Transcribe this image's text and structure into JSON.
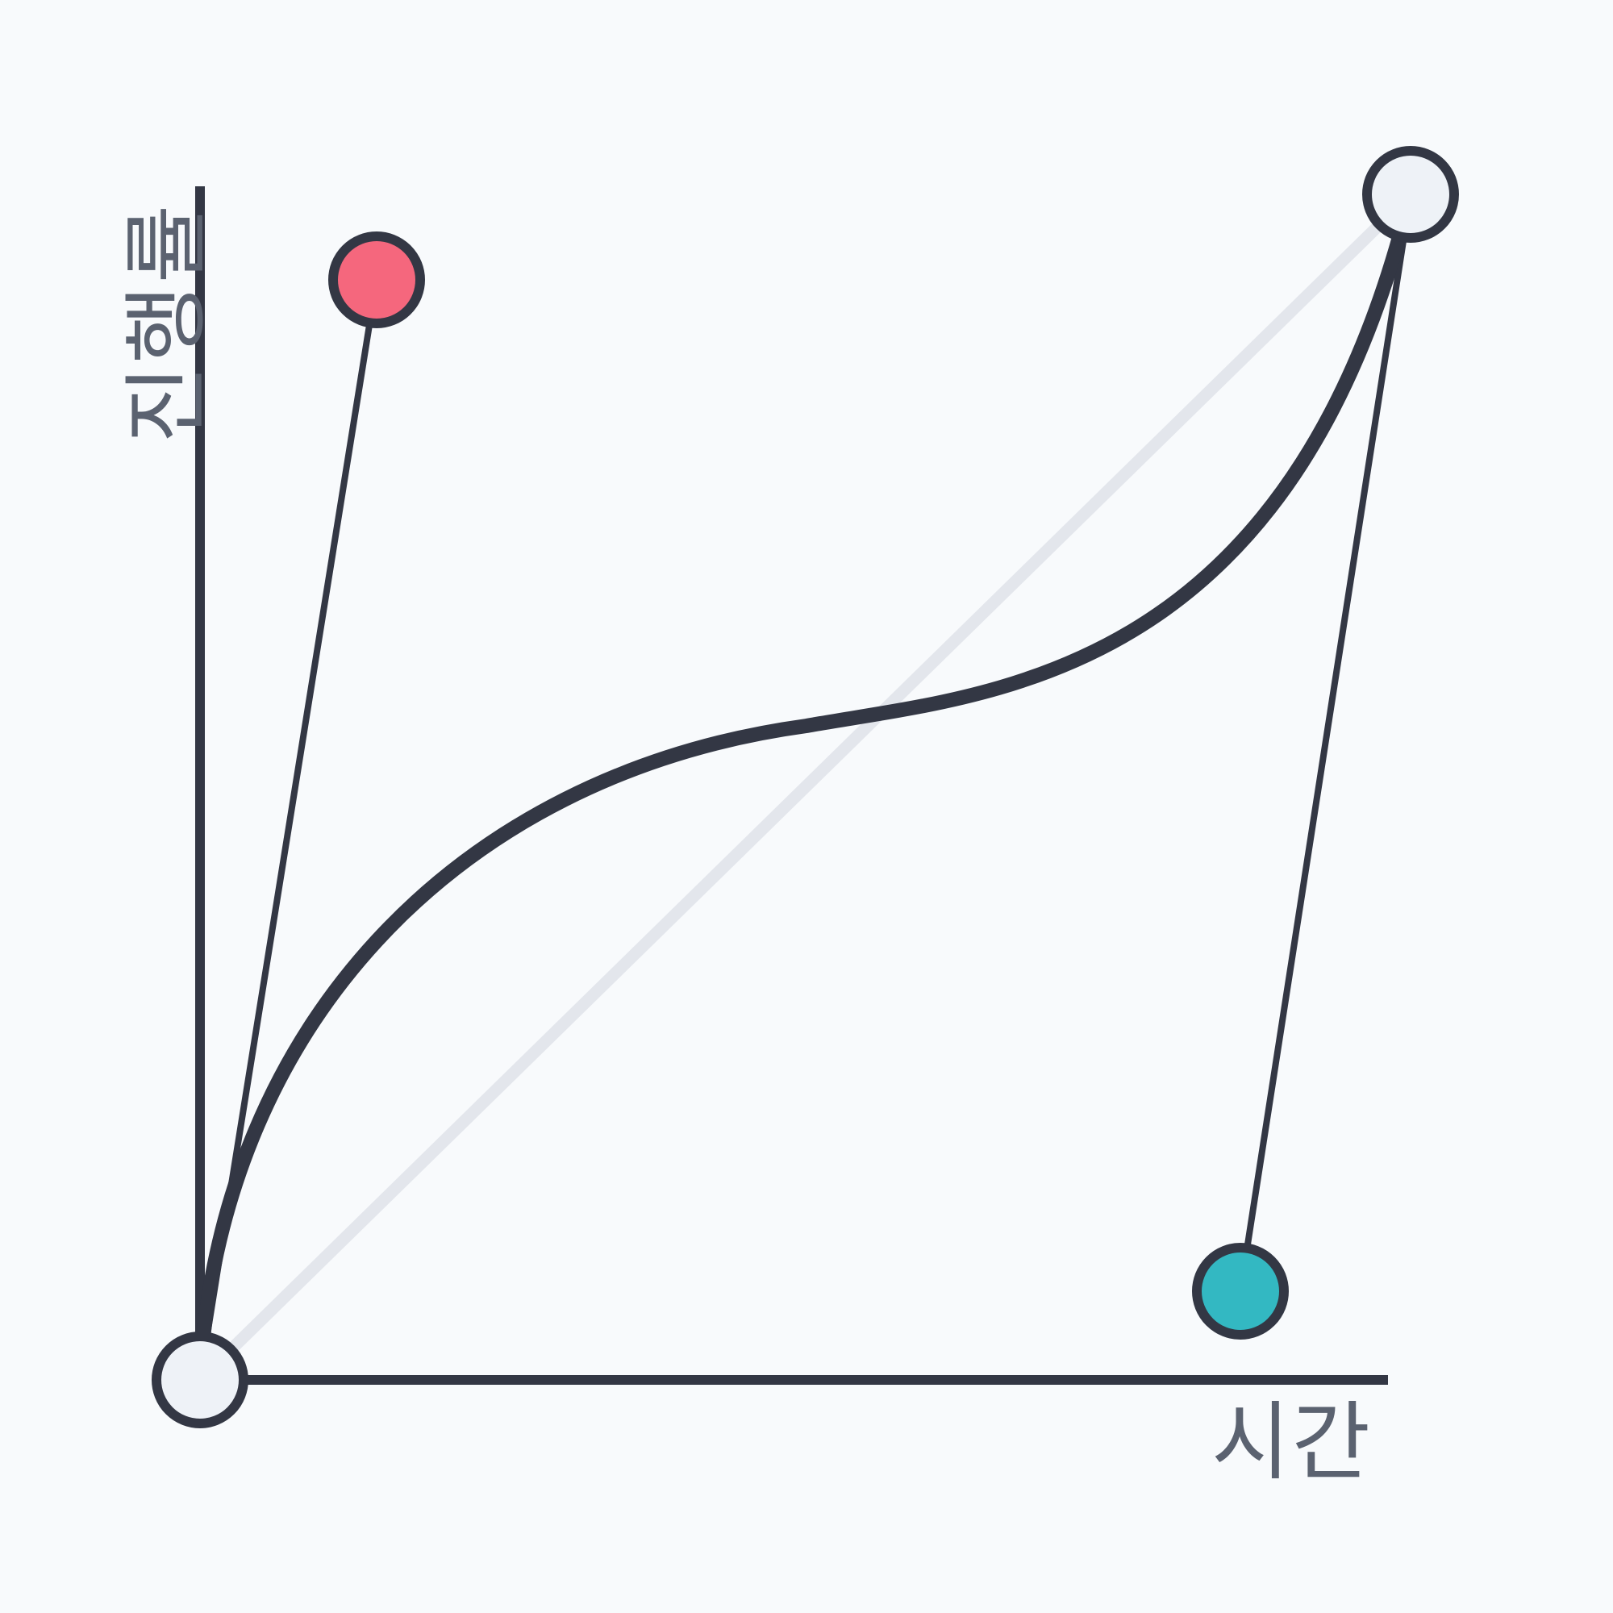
{
  "labels": {
    "x_axis": "시간",
    "y_axis": "진행률"
  },
  "colors": {
    "background": "#f8fafc",
    "ink": "#333744",
    "reference_line": "#e3e6ec",
    "start_end_handle_fill": "#eef2f7",
    "control_point_1": "#f5677d",
    "control_point_2": "#33b8c2"
  },
  "icons": {
    "start_handle": "circle-handle-icon",
    "end_handle": "circle-handle-icon",
    "control_point_1": "circle-handle-icon",
    "control_point_2": "circle-handle-icon"
  }
}
